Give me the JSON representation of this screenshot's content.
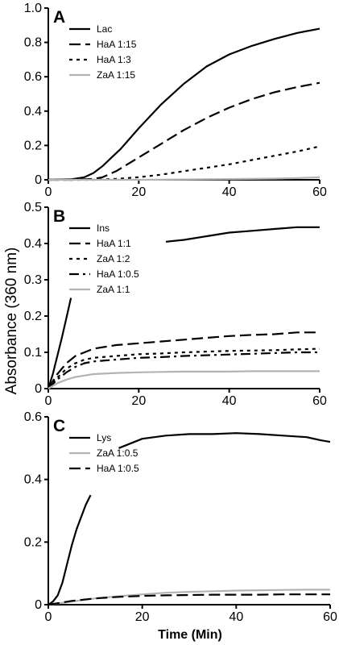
{
  "figure": {
    "ylabel": "Absorbance (360 nm)",
    "xlabel": "Time (Min)"
  },
  "colors": {
    "black": "#000000",
    "gray": "#b3b3b3"
  },
  "chart_data": [
    {
      "type": "line",
      "panel": "A",
      "xlim": [
        0,
        60
      ],
      "ylim": [
        0,
        1.0
      ],
      "xticks": [
        "0",
        "20",
        "40",
        "60"
      ],
      "yticks": [
        "0",
        "0.2",
        "0.4",
        "0.6",
        "0.8",
        "1.0"
      ],
      "legend_position": "top-left",
      "series": [
        {
          "name": "Lac",
          "style": "solid",
          "color": "#000000",
          "x": [
            0,
            5,
            8,
            10,
            12,
            14,
            16,
            18,
            20,
            25,
            30,
            35,
            40,
            45,
            50,
            55,
            60
          ],
          "values": [
            0,
            0.003,
            0.015,
            0.04,
            0.08,
            0.13,
            0.18,
            0.24,
            0.3,
            0.44,
            0.56,
            0.66,
            0.73,
            0.78,
            0.82,
            0.855,
            0.88
          ]
        },
        {
          "name": "HaA 1:15",
          "style": "dash",
          "color": "#000000",
          "x": [
            0,
            5,
            10,
            12,
            15,
            20,
            25,
            30,
            35,
            40,
            45,
            50,
            55,
            60
          ],
          "values": [
            0,
            0,
            0.005,
            0.015,
            0.05,
            0.13,
            0.21,
            0.29,
            0.36,
            0.42,
            0.47,
            0.51,
            0.54,
            0.565
          ]
        },
        {
          "name": "HaA 1:3",
          "style": "dot",
          "color": "#000000",
          "x": [
            0,
            10,
            15,
            20,
            25,
            30,
            35,
            40,
            45,
            50,
            55,
            60
          ],
          "values": [
            0,
            0,
            0.005,
            0.015,
            0.03,
            0.05,
            0.07,
            0.09,
            0.115,
            0.14,
            0.165,
            0.195
          ]
        },
        {
          "name": "ZaA 1:15",
          "style": "solid",
          "color": "#b3b3b3",
          "x": [
            0,
            20,
            30,
            40,
            50,
            55,
            60
          ],
          "values": [
            0,
            0,
            0.002,
            0.004,
            0.007,
            0.01,
            0.015
          ]
        }
      ]
    },
    {
      "type": "line",
      "panel": "B",
      "xlim": [
        0,
        60
      ],
      "ylim": [
        0,
        0.5
      ],
      "xticks": [
        "0",
        "20",
        "40",
        "60"
      ],
      "yticks": [
        "0",
        "0.1",
        "0.2",
        "0.3",
        "0.4",
        "0.5"
      ],
      "legend_position": "top-left",
      "series": [
        {
          "name": "Ins",
          "style": "solid",
          "color": "#000000",
          "x": [
            0,
            1,
            2,
            3,
            4,
            5,
            26,
            30,
            35,
            40,
            45,
            50,
            55,
            60
          ],
          "values": [
            0,
            0.04,
            0.09,
            0.14,
            0.195,
            0.25,
            0.405,
            0.41,
            0.42,
            0.43,
            0.435,
            0.44,
            0.445,
            0.445
          ],
          "gap_after_index": 5
        },
        {
          "name": "HaA 1:1",
          "style": "dash",
          "color": "#000000",
          "x": [
            0,
            2,
            4,
            6,
            8,
            10,
            15,
            20,
            25,
            30,
            35,
            40,
            45,
            50,
            55,
            60
          ],
          "values": [
            0,
            0.04,
            0.07,
            0.09,
            0.1,
            0.11,
            0.12,
            0.125,
            0.13,
            0.135,
            0.14,
            0.145,
            0.148,
            0.15,
            0.155,
            0.155
          ]
        },
        {
          "name": "ZaA 1:2",
          "style": "dot",
          "color": "#000000",
          "x": [
            0,
            2,
            4,
            6,
            8,
            10,
            15,
            20,
            25,
            30,
            35,
            40,
            45,
            50,
            55,
            60
          ],
          "values": [
            0,
            0.03,
            0.055,
            0.07,
            0.08,
            0.085,
            0.09,
            0.095,
            0.097,
            0.1,
            0.102,
            0.104,
            0.105,
            0.106,
            0.108,
            0.11
          ]
        },
        {
          "name": "HaA 1:0.5",
          "style": "dashdot",
          "color": "#000000",
          "x": [
            0,
            2,
            4,
            6,
            8,
            10,
            15,
            20,
            25,
            30,
            35,
            40,
            45,
            50,
            55,
            60
          ],
          "values": [
            0,
            0.025,
            0.045,
            0.06,
            0.07,
            0.075,
            0.08,
            0.085,
            0.087,
            0.09,
            0.092,
            0.094,
            0.096,
            0.098,
            0.1,
            0.1
          ]
        },
        {
          "name": "ZaA 1:1",
          "style": "solid",
          "color": "#b3b3b3",
          "x": [
            0,
            2,
            4,
            6,
            8,
            10,
            15,
            20,
            25,
            30,
            35,
            40,
            45,
            50,
            55,
            60
          ],
          "values": [
            0,
            0.015,
            0.025,
            0.032,
            0.036,
            0.04,
            0.043,
            0.045,
            0.046,
            0.047,
            0.047,
            0.047,
            0.048,
            0.048,
            0.048,
            0.048
          ]
        }
      ]
    },
    {
      "type": "line",
      "panel": "C",
      "xlim": [
        0,
        60
      ],
      "ylim": [
        0,
        0.6
      ],
      "xticks": [
        "0",
        "20",
        "40",
        "60"
      ],
      "yticks": [
        "0",
        "0.2",
        "0.4",
        "0.6"
      ],
      "legend_position": "top-left",
      "series": [
        {
          "name": "Lys",
          "style": "solid",
          "color": "#000000",
          "x": [
            0,
            1,
            2,
            3,
            4,
            5,
            6,
            7,
            8,
            9,
            15,
            20,
            25,
            30,
            35,
            40,
            45,
            50,
            55,
            58,
            60
          ],
          "values": [
            0,
            0.01,
            0.03,
            0.07,
            0.13,
            0.19,
            0.24,
            0.28,
            0.32,
            0.35,
            0.5,
            0.53,
            0.54,
            0.545,
            0.545,
            0.548,
            0.545,
            0.54,
            0.535,
            0.525,
            0.52
          ],
          "gap_after_index": 9
        },
        {
          "name": "ZaA 1:0.5",
          "style": "solid",
          "color": "#b3b3b3",
          "x": [
            0,
            5,
            10,
            15,
            20,
            25,
            30,
            35,
            40,
            45,
            50,
            55,
            60
          ],
          "values": [
            0,
            0.01,
            0.02,
            0.027,
            0.033,
            0.038,
            0.041,
            0.043,
            0.045,
            0.046,
            0.047,
            0.048,
            0.048
          ]
        },
        {
          "name": "HaA 1:0.5",
          "style": "dash",
          "color": "#000000",
          "x": [
            0,
            5,
            10,
            15,
            20,
            25,
            30,
            35,
            40,
            45,
            50,
            55,
            60
          ],
          "values": [
            0,
            0.012,
            0.02,
            0.025,
            0.028,
            0.03,
            0.031,
            0.032,
            0.032,
            0.032,
            0.033,
            0.033,
            0.033
          ]
        }
      ]
    }
  ]
}
